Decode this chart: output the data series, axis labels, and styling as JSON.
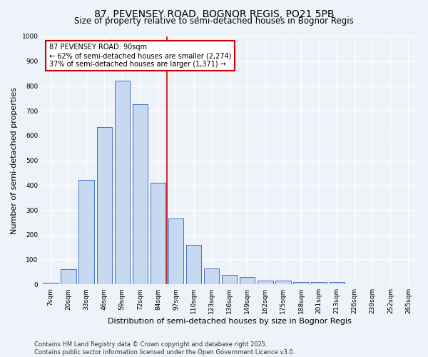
{
  "title": "87, PEVENSEY ROAD, BOGNOR REGIS, PO21 5PB",
  "subtitle": "Size of property relative to semi-detached houses in Bognor Regis",
  "xlabel": "Distribution of semi-detached houses by size in Bognor Regis",
  "ylabel": "Number of semi-detached properties",
  "categories": [
    "7sqm",
    "20sqm",
    "33sqm",
    "46sqm",
    "59sqm",
    "72sqm",
    "84sqm",
    "97sqm",
    "110sqm",
    "123sqm",
    "136sqm",
    "149sqm",
    "162sqm",
    "175sqm",
    "188sqm",
    "201sqm",
    "213sqm",
    "226sqm",
    "239sqm",
    "252sqm",
    "265sqm"
  ],
  "values": [
    5,
    62,
    420,
    635,
    820,
    725,
    410,
    265,
    160,
    65,
    38,
    28,
    15,
    15,
    10,
    10,
    8,
    2,
    2,
    0,
    0
  ],
  "bar_color": "#c6d9f0",
  "bar_edge_color": "#4472c4",
  "annotation_text": "87 PEVENSEY ROAD: 90sqm\n← 62% of semi-detached houses are smaller (2,274)\n37% of semi-detached houses are larger (1,371) →",
  "annotation_box_color": "#ffffff",
  "annotation_box_edge_color": "#cc0000",
  "vline_x_index": 6,
  "ylim": [
    0,
    1000
  ],
  "yticks": [
    0,
    100,
    200,
    300,
    400,
    500,
    600,
    700,
    800,
    900,
    1000
  ],
  "footer": "Contains HM Land Registry data © Crown copyright and database right 2025.\nContains public sector information licensed under the Open Government Licence v3.0.",
  "bg_color": "#eef2f9",
  "grid_color": "#ffffff",
  "title_fontsize": 10,
  "subtitle_fontsize": 8.5,
  "tick_fontsize": 6.5,
  "label_fontsize": 8,
  "annotation_fontsize": 7,
  "footer_fontsize": 6
}
